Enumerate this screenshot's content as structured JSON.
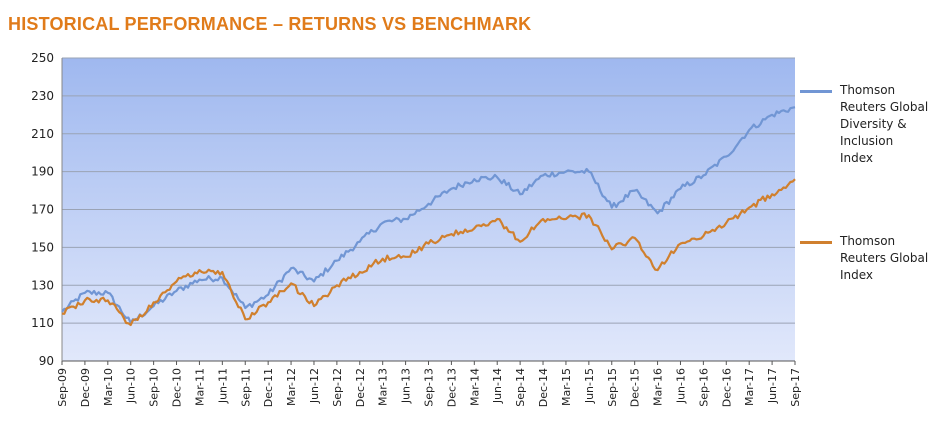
{
  "title": "HISTORICAL PERFORMANCE – RETURNS VS BENCHMARK",
  "chart_data": {
    "type": "line",
    "title": "HISTORICAL PERFORMANCE – RETURNS VS BENCHMARK",
    "xlabel": "",
    "ylabel": "",
    "ylim": [
      90,
      250
    ],
    "yticks": [
      90,
      110,
      130,
      150,
      170,
      190,
      210,
      230,
      250
    ],
    "grid": true,
    "legend_position": "right",
    "xticks": [
      "Sep-09",
      "Dec-09",
      "Mar-10",
      "Jun-10",
      "Sep-10",
      "Dec-10",
      "Mar-11",
      "Jun-11",
      "Sep-11",
      "Dec-11",
      "Mar-12",
      "Jun-12",
      "Sep-12",
      "Dec-12",
      "Mar-13",
      "Jun-13",
      "Sep-13",
      "Dec-13",
      "Mar-14",
      "Jun-14",
      "Sep-14",
      "Dec-14",
      "Mar-15",
      "Jun-15",
      "Sep-15",
      "Dec-15",
      "Mar-16",
      "Jun-16",
      "Sep-16",
      "Dec-16",
      "Mar-17",
      "Jun-17",
      "Sep-17"
    ],
    "x": [
      "Sep-09",
      "Dec-09",
      "Mar-10",
      "Jun-10",
      "Sep-10",
      "Dec-10",
      "Mar-11",
      "Jun-11",
      "Sep-11",
      "Dec-11",
      "Mar-12",
      "Jun-12",
      "Sep-12",
      "Dec-12",
      "Mar-13",
      "Jun-13",
      "Sep-13",
      "Dec-13",
      "Mar-14",
      "Jun-14",
      "Sep-14",
      "Dec-14",
      "Mar-15",
      "Jun-15",
      "Sep-15",
      "Dec-15",
      "Mar-16",
      "Jun-16",
      "Sep-16",
      "Dec-16",
      "Mar-17",
      "Jun-17",
      "Sep-17"
    ],
    "series": [
      {
        "name": "Thomson Reuters Global Diversity & Inclusion Index",
        "color": "#7196d4",
        "values": [
          116,
          126,
          126,
          110,
          119,
          127,
          133,
          134,
          118,
          125,
          139,
          132,
          143,
          153,
          163,
          165,
          173,
          181,
          186,
          187,
          178,
          188,
          190,
          190,
          171,
          180,
          168,
          181,
          188,
          198,
          212,
          220,
          224
        ]
      },
      {
        "name": "Thomson Reuters Global Index",
        "color": "#d0802e",
        "values": [
          115,
          122,
          122,
          109,
          121,
          132,
          138,
          137,
          112,
          121,
          131,
          119,
          130,
          137,
          144,
          145,
          152,
          157,
          160,
          165,
          153,
          165,
          165,
          167,
          149,
          155,
          138,
          152,
          156,
          163,
          171,
          178,
          186
        ]
      }
    ],
    "plot_background_gradient": [
      "#9fb8ef",
      "#e1e8fb"
    ],
    "gridline_color": "#9aa3b5"
  }
}
